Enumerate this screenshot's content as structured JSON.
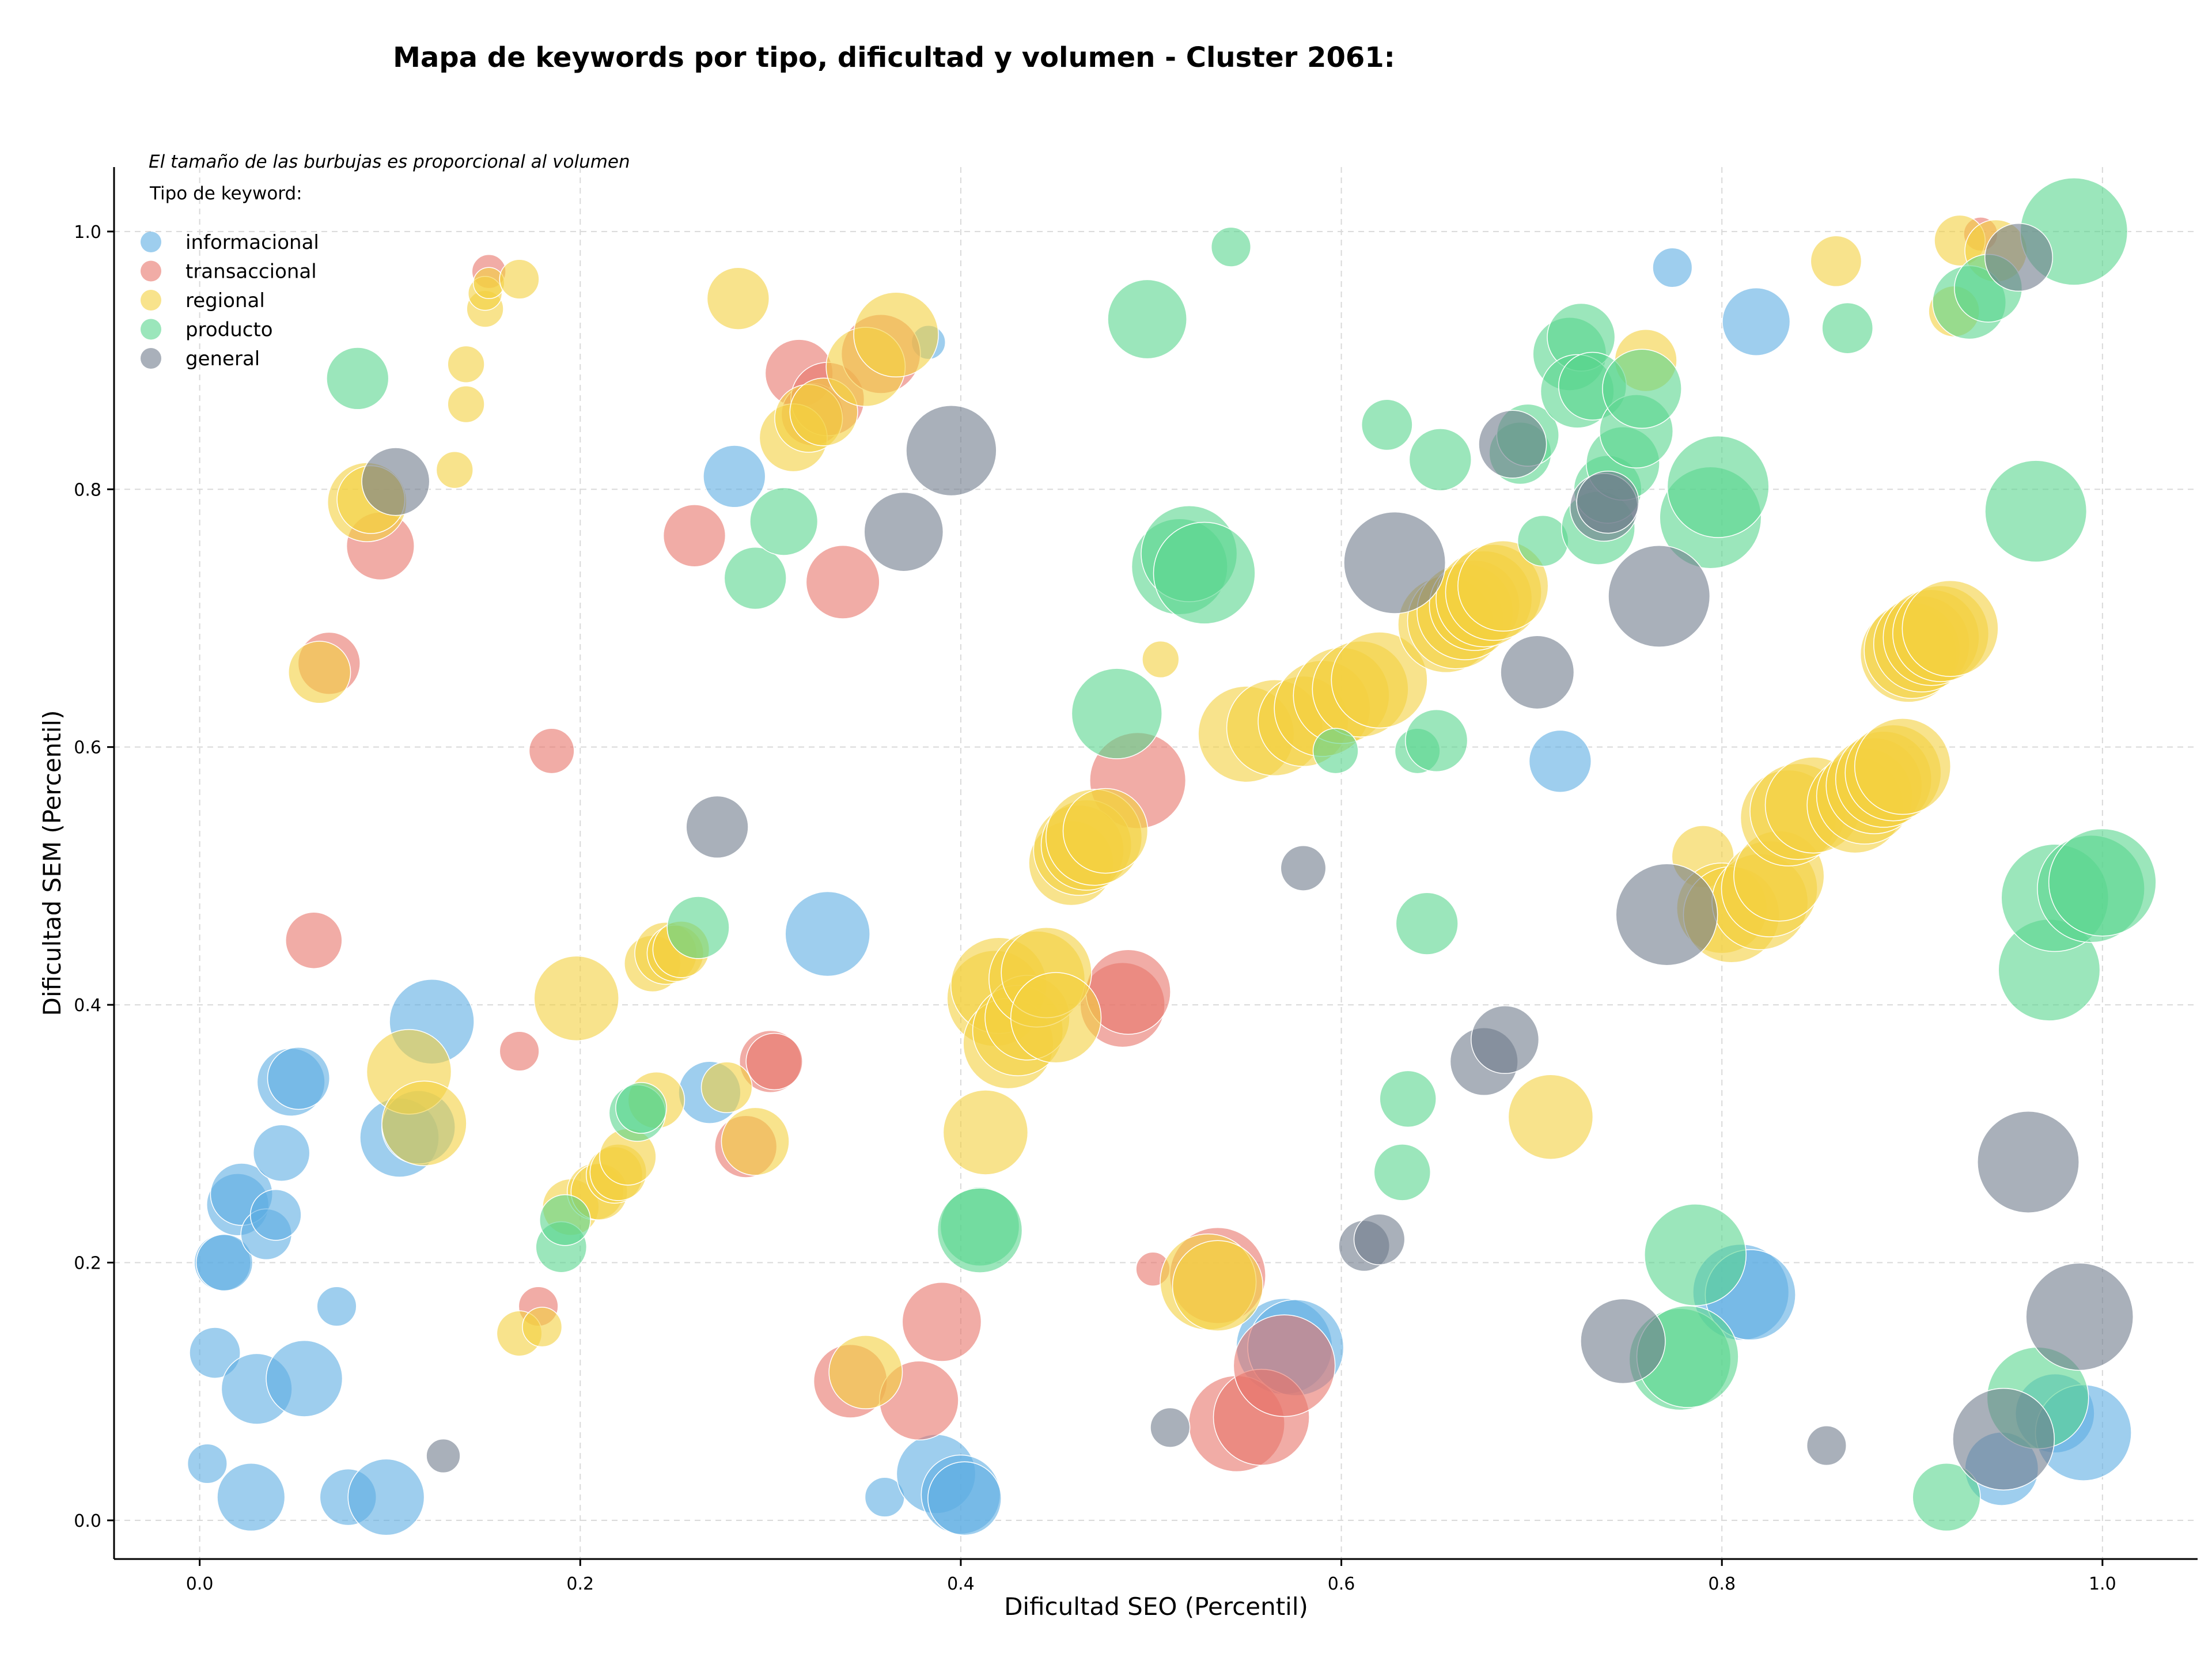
{
  "chart_data": {
    "type": "scatter",
    "title": "Mapa de keywords por tipo, dificultad y volumen - Cluster 2061:",
    "xlabel": "Dificultad SEO (Percentil)",
    "ylabel": "Dificultad SEM (Percentil)",
    "xlim": [
      -0.045,
      1.05
    ],
    "ylim": [
      -0.03,
      1.05
    ],
    "xticks": [
      "0.0",
      "0.2",
      "0.4",
      "0.6",
      "0.8",
      "1.0"
    ],
    "yticks": [
      "0.0",
      "0.2",
      "0.4",
      "0.6",
      "0.8",
      "1.0"
    ],
    "grid": true,
    "annotation": "El tamaño de las burbujas es proporcional al volumen",
    "legend": {
      "title": "Tipo de keyword:",
      "position": "top-left"
    },
    "series": [
      {
        "name": "informacional",
        "color": "#5dade2",
        "points": [
          [
            0.004,
            0.044,
            14
          ],
          [
            0.008,
            0.13,
            18
          ],
          [
            0.012,
            0.2,
            20
          ],
          [
            0.013,
            0.2,
            20
          ],
          [
            0.02,
            0.245,
            22
          ],
          [
            0.022,
            0.253,
            22
          ],
          [
            0.027,
            0.018,
            24
          ],
          [
            0.03,
            0.102,
            25
          ],
          [
            0.035,
            0.222,
            18
          ],
          [
            0.04,
            0.237,
            18
          ],
          [
            0.043,
            0.285,
            20
          ],
          [
            0.048,
            0.34,
            24
          ],
          [
            0.052,
            0.343,
            22
          ],
          [
            0.055,
            0.11,
            27
          ],
          [
            0.072,
            0.166,
            14
          ],
          [
            0.078,
            0.018,
            20
          ],
          [
            0.098,
            0.018,
            27
          ],
          [
            0.105,
            0.297,
            28
          ],
          [
            0.115,
            0.305,
            26
          ],
          [
            0.122,
            0.387,
            30
          ],
          [
            0.268,
            0.332,
            22
          ],
          [
            0.281,
            0.81,
            22
          ],
          [
            0.33,
            0.455,
            30
          ],
          [
            0.36,
            0.018,
            14
          ],
          [
            0.383,
            0.914,
            12
          ],
          [
            0.387,
            0.036,
            28
          ],
          [
            0.4,
            0.02,
            28
          ],
          [
            0.402,
            0.017,
            26
          ],
          [
            0.57,
            0.135,
            34
          ],
          [
            0.576,
            0.134,
            34
          ],
          [
            0.715,
            0.589,
            22
          ],
          [
            0.774,
            0.972,
            14
          ],
          [
            0.81,
            0.177,
            34
          ],
          [
            0.815,
            0.175,
            32
          ],
          [
            0.818,
            0.93,
            24
          ],
          [
            0.947,
            0.04,
            26
          ],
          [
            0.975,
            0.083,
            28
          ],
          [
            0.99,
            0.068,
            34
          ]
        ]
      },
      {
        "name": "transaccional",
        "color": "#e8756a",
        "points": [
          [
            0.152,
            0.969,
            12
          ],
          [
            0.06,
            0.45,
            20
          ],
          [
            0.068,
            0.665,
            22
          ],
          [
            0.095,
            0.756,
            24
          ],
          [
            0.168,
            0.364,
            14
          ],
          [
            0.178,
            0.166,
            14
          ],
          [
            0.185,
            0.597,
            16
          ],
          [
            0.26,
            0.764,
            22
          ],
          [
            0.287,
            0.29,
            22
          ],
          [
            0.3,
            0.356,
            22
          ],
          [
            0.302,
            0.356,
            20
          ],
          [
            0.315,
            0.89,
            24
          ],
          [
            0.322,
            0.858,
            22
          ],
          [
            0.33,
            0.87,
            26
          ],
          [
            0.338,
            0.728,
            26
          ],
          [
            0.342,
            0.108,
            26
          ],
          [
            0.358,
            0.905,
            28
          ],
          [
            0.378,
            0.093,
            28
          ],
          [
            0.39,
            0.154,
            28
          ],
          [
            0.485,
            0.4,
            30
          ],
          [
            0.488,
            0.41,
            30
          ],
          [
            0.493,
            0.574,
            34
          ],
          [
            0.501,
            0.195,
            12
          ],
          [
            0.535,
            0.19,
            34
          ],
          [
            0.545,
            0.075,
            34
          ],
          [
            0.558,
            0.08,
            34
          ],
          [
            0.57,
            0.12,
            36
          ],
          [
            0.936,
            0.998,
            12
          ]
        ]
      },
      {
        "name": "regional",
        "color": "#f4d03f",
        "points": [
          [
            0.15,
            0.94,
            13
          ],
          [
            0.15,
            0.952,
            12
          ],
          [
            0.152,
            0.96,
            11
          ],
          [
            0.168,
            0.963,
            14
          ],
          [
            0.14,
            0.897,
            13
          ],
          [
            0.14,
            0.866,
            13
          ],
          [
            0.134,
            0.815,
            13
          ],
          [
            0.088,
            0.79,
            28
          ],
          [
            0.09,
            0.792,
            24
          ],
          [
            0.063,
            0.658,
            22
          ],
          [
            0.11,
            0.348,
            30
          ],
          [
            0.118,
            0.308,
            30
          ],
          [
            0.168,
            0.145,
            16
          ],
          [
            0.18,
            0.15,
            14
          ],
          [
            0.195,
            0.243,
            20
          ],
          [
            0.198,
            0.405,
            30
          ],
          [
            0.208,
            0.255,
            20
          ],
          [
            0.21,
            0.255,
            20
          ],
          [
            0.218,
            0.268,
            20
          ],
          [
            0.22,
            0.27,
            20
          ],
          [
            0.225,
            0.282,
            20
          ],
          [
            0.238,
            0.432,
            20
          ],
          [
            0.24,
            0.326,
            20
          ],
          [
            0.245,
            0.44,
            22
          ],
          [
            0.25,
            0.44,
            20
          ],
          [
            0.253,
            0.443,
            20
          ],
          [
            0.277,
            0.336,
            18
          ],
          [
            0.283,
            0.948,
            22
          ],
          [
            0.292,
            0.294,
            24
          ],
          [
            0.312,
            0.84,
            24
          ],
          [
            0.32,
            0.855,
            24
          ],
          [
            0.328,
            0.86,
            24
          ],
          [
            0.35,
            0.115,
            26
          ],
          [
            0.35,
            0.895,
            28
          ],
          [
            0.366,
            0.92,
            30
          ],
          [
            0.413,
            0.301,
            30
          ],
          [
            0.418,
            0.405,
            34
          ],
          [
            0.42,
            0.415,
            34
          ],
          [
            0.425,
            0.37,
            32
          ],
          [
            0.43,
            0.38,
            32
          ],
          [
            0.435,
            0.39,
            30
          ],
          [
            0.44,
            0.42,
            34
          ],
          [
            0.445,
            0.425,
            32
          ],
          [
            0.45,
            0.39,
            32
          ],
          [
            0.458,
            0.51,
            30
          ],
          [
            0.462,
            0.52,
            32
          ],
          [
            0.466,
            0.524,
            32
          ],
          [
            0.47,
            0.53,
            34
          ],
          [
            0.476,
            0.535,
            30
          ],
          [
            0.505,
            0.668,
            13
          ],
          [
            0.53,
            0.185,
            34
          ],
          [
            0.535,
            0.182,
            32
          ],
          [
            0.55,
            0.61,
            34
          ],
          [
            0.565,
            0.615,
            34
          ],
          [
            0.58,
            0.62,
            32
          ],
          [
            0.59,
            0.63,
            34
          ],
          [
            0.6,
            0.64,
            34
          ],
          [
            0.61,
            0.645,
            34
          ],
          [
            0.62,
            0.652,
            34
          ],
          [
            0.655,
            0.695,
            34
          ],
          [
            0.66,
            0.698,
            34
          ],
          [
            0.665,
            0.705,
            34
          ],
          [
            0.67,
            0.71,
            32
          ],
          [
            0.675,
            0.715,
            34
          ],
          [
            0.68,
            0.72,
            34
          ],
          [
            0.685,
            0.725,
            32
          ],
          [
            0.71,
            0.313,
            30
          ],
          [
            0.76,
            0.9,
            22
          ],
          [
            0.79,
            0.515,
            22
          ],
          [
            0.8,
            0.475,
            32
          ],
          [
            0.805,
            0.47,
            34
          ],
          [
            0.82,
            0.48,
            34
          ],
          [
            0.825,
            0.49,
            34
          ],
          [
            0.83,
            0.5,
            32
          ],
          [
            0.835,
            0.545,
            34
          ],
          [
            0.84,
            0.55,
            34
          ],
          [
            0.848,
            0.555,
            34
          ],
          [
            0.87,
            0.555,
            34
          ],
          [
            0.875,
            0.562,
            34
          ],
          [
            0.88,
            0.57,
            34
          ],
          [
            0.885,
            0.575,
            34
          ],
          [
            0.89,
            0.58,
            34
          ],
          [
            0.895,
            0.585,
            34
          ],
          [
            0.898,
            0.672,
            34
          ],
          [
            0.9,
            0.675,
            34
          ],
          [
            0.905,
            0.68,
            34
          ],
          [
            0.91,
            0.685,
            34
          ],
          [
            0.915,
            0.688,
            34
          ],
          [
            0.92,
            0.692,
            34
          ],
          [
            0.86,
            0.977,
            18
          ],
          [
            0.922,
            0.938,
            18
          ],
          [
            0.925,
            0.993,
            18
          ],
          [
            0.944,
            0.985,
            22
          ]
        ]
      },
      {
        "name": "producto",
        "color": "#58d68d",
        "points": [
          [
            0.083,
            0.886,
            22
          ],
          [
            0.19,
            0.212,
            18
          ],
          [
            0.192,
            0.233,
            18
          ],
          [
            0.23,
            0.316,
            20
          ],
          [
            0.232,
            0.32,
            18
          ],
          [
            0.262,
            0.46,
            22
          ],
          [
            0.292,
            0.731,
            22
          ],
          [
            0.307,
            0.775,
            24
          ],
          [
            0.41,
            0.228,
            28
          ],
          [
            0.41,
            0.225,
            30
          ],
          [
            0.482,
            0.626,
            32
          ],
          [
            0.498,
            0.932,
            28
          ],
          [
            0.515,
            0.74,
            34
          ],
          [
            0.52,
            0.75,
            34
          ],
          [
            0.528,
            0.735,
            36
          ],
          [
            0.542,
            0.988,
            14
          ],
          [
            0.597,
            0.597,
            16
          ],
          [
            0.624,
            0.85,
            18
          ],
          [
            0.635,
            0.327,
            20
          ],
          [
            0.632,
            0.27,
            20
          ],
          [
            0.64,
            0.597,
            16
          ],
          [
            0.645,
            0.463,
            22
          ],
          [
            0.65,
            0.605,
            22
          ],
          [
            0.652,
            0.823,
            22
          ],
          [
            0.694,
            0.828,
            22
          ],
          [
            0.698,
            0.842,
            22
          ],
          [
            0.706,
            0.76,
            18
          ],
          [
            0.72,
            0.905,
            26
          ],
          [
            0.726,
            0.918,
            24
          ],
          [
            0.724,
            0.876,
            26
          ],
          [
            0.732,
            0.88,
            24
          ],
          [
            0.735,
            0.77,
            26
          ],
          [
            0.74,
            0.8,
            24
          ],
          [
            0.748,
            0.82,
            26
          ],
          [
            0.755,
            0.845,
            26
          ],
          [
            0.758,
            0.878,
            28
          ],
          [
            0.778,
            0.125,
            36
          ],
          [
            0.782,
            0.127,
            36
          ],
          [
            0.786,
            0.206,
            36
          ],
          [
            0.794,
            0.778,
            36
          ],
          [
            0.798,
            0.802,
            36
          ],
          [
            0.866,
            0.925,
            18
          ],
          [
            0.918,
            0.018,
            24
          ],
          [
            0.93,
            0.945,
            26
          ],
          [
            0.94,
            0.956,
            24
          ],
          [
            0.966,
            0.095,
            36
          ],
          [
            0.965,
            0.783,
            36
          ],
          [
            0.972,
            0.427,
            36
          ],
          [
            0.975,
            0.483,
            38
          ],
          [
            0.994,
            0.49,
            38
          ],
          [
            1.0,
            0.495,
            38
          ],
          [
            0.985,
            1.0,
            38
          ]
        ]
      },
      {
        "name": "general",
        "color": "#707b8c",
        "points": [
          [
            0.103,
            0.806,
            24
          ],
          [
            0.128,
            0.05,
            12
          ],
          [
            0.272,
            0.538,
            22
          ],
          [
            0.37,
            0.767,
            28
          ],
          [
            0.395,
            0.83,
            32
          ],
          [
            0.58,
            0.506,
            16
          ],
          [
            0.51,
            0.072,
            14
          ],
          [
            0.612,
            0.213,
            18
          ],
          [
            0.62,
            0.218,
            18
          ],
          [
            0.628,
            0.743,
            36
          ],
          [
            0.675,
            0.356,
            24
          ],
          [
            0.686,
            0.373,
            24
          ],
          [
            0.69,
            0.835,
            24
          ],
          [
            0.703,
            0.658,
            26
          ],
          [
            0.738,
            0.786,
            24
          ],
          [
            0.74,
            0.79,
            22
          ],
          [
            0.748,
            0.139,
            30
          ],
          [
            0.767,
            0.717,
            36
          ],
          [
            0.771,
            0.47,
            36
          ],
          [
            0.855,
            0.058,
            14
          ],
          [
            0.948,
            0.063,
            36
          ],
          [
            0.956,
            0.98,
            24
          ],
          [
            0.961,
            0.278,
            36
          ],
          [
            0.988,
            0.158,
            38
          ]
        ]
      }
    ]
  }
}
